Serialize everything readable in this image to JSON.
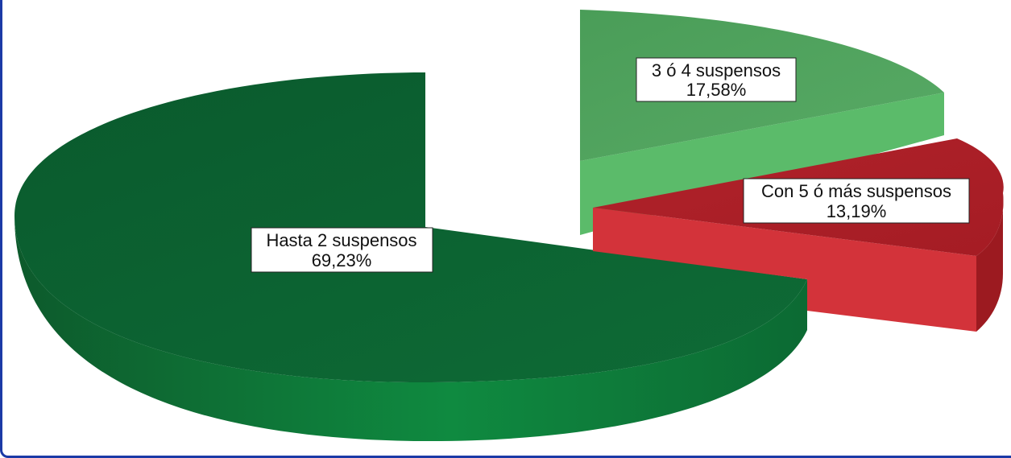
{
  "chart_data": {
    "type": "pie",
    "style": "3d-exploded",
    "title": "",
    "slices": [
      {
        "label": "Hasta 2 suspensos",
        "value": 69.23,
        "value_label": "69,23%",
        "color": "#0b6b36"
      },
      {
        "label": "3 ó 4 suspensos",
        "value": 17.58,
        "value_label": "17,58%",
        "color": "#4fa65e"
      },
      {
        "label": "Con 5 ó más suspensos",
        "value": 13.19,
        "value_label": "13,19%",
        "color": "#c82a2e"
      }
    ]
  }
}
